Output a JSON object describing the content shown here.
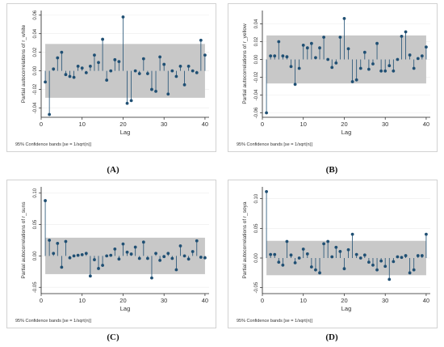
{
  "colors": {
    "band": "#c8c8c8",
    "stem": "#1f4f73",
    "marker": "#1f4f73",
    "axis": "#222222",
    "text": "#333333"
  },
  "labels": {
    "A": "(A)",
    "B": "(B)",
    "C": "(C)",
    "D": "(D)"
  },
  "chart_data": [
    {
      "type": "scatter",
      "style": "stem plot with markers, shaded 95% confidence band",
      "xlabel": "Lag",
      "ylabel": "Partial autocorrelations of r_white",
      "note": "95% Confidence bands [se = 1/sqrt(n)]",
      "xlim": [
        0,
        41
      ],
      "ylim": [
        -0.05,
        0.065
      ],
      "xticks": [
        0,
        10,
        20,
        30,
        40
      ],
      "yticks": [
        -0.04,
        -0.02,
        0.0,
        0.02,
        0.04,
        0.06
      ],
      "ytick_labels": [
        "-0.04",
        "-0.02",
        "0.00",
        "0.02",
        "0.04",
        "0.06"
      ],
      "band": [
        -0.029,
        0.029
      ],
      "grid": true,
      "x": [
        1,
        2,
        3,
        4,
        5,
        6,
        7,
        8,
        9,
        10,
        11,
        12,
        13,
        14,
        15,
        16,
        17,
        18,
        19,
        20,
        21,
        22,
        23,
        24,
        25,
        26,
        27,
        28,
        29,
        30,
        31,
        32,
        33,
        34,
        35,
        36,
        37,
        38,
        39,
        40
      ],
      "values": [
        -0.012,
        -0.047,
        0.002,
        0.014,
        0.02,
        -0.004,
        -0.006,
        -0.007,
        0.005,
        0.003,
        -0.002,
        0.005,
        0.017,
        0.009,
        0.034,
        -0.01,
        0.0,
        0.012,
        0.01,
        0.058,
        -0.035,
        -0.032,
        0.0,
        -0.003,
        0.013,
        -0.003,
        -0.02,
        -0.022,
        0.015,
        0.007,
        -0.025,
        0.0,
        -0.006,
        0.005,
        -0.015,
        0.005,
        0.0,
        -0.002,
        0.033,
        0.017
      ]
    },
    {
      "type": "scatter",
      "style": "stem plot with markers, shaded 95% confidence band",
      "xlabel": "Lag",
      "ylabel": "Partial autocorrelations of r_yellow",
      "note": "95% Confidence bands [se = 1/sqrt(n)]",
      "xlim": [
        0,
        41
      ],
      "ylim": [
        -0.065,
        0.055
      ],
      "xticks": [
        0,
        10,
        20,
        30,
        40
      ],
      "yticks": [
        -0.06,
        -0.04,
        -0.02,
        0.0,
        0.02,
        0.04
      ],
      "ytick_labels": [
        "-0.06",
        "-0.04",
        "-0.02",
        "0.00",
        "0.02",
        "0.04"
      ],
      "band": [
        -0.027,
        0.027
      ],
      "grid": true,
      "x": [
        1,
        2,
        3,
        4,
        5,
        6,
        7,
        8,
        9,
        10,
        11,
        12,
        13,
        14,
        15,
        16,
        17,
        18,
        19,
        20,
        21,
        22,
        23,
        24,
        25,
        26,
        27,
        28,
        29,
        30,
        31,
        32,
        33,
        34,
        35,
        36,
        37,
        38,
        39,
        40
      ],
      "values": [
        -0.06,
        0.004,
        0.004,
        0.02,
        0.004,
        0.003,
        -0.008,
        -0.028,
        -0.01,
        0.016,
        0.013,
        0.018,
        0.002,
        0.013,
        0.025,
        0.0,
        -0.009,
        -0.004,
        0.025,
        0.046,
        0.012,
        -0.025,
        -0.023,
        -0.01,
        0.008,
        -0.011,
        -0.005,
        0.018,
        -0.013,
        -0.013,
        -0.007,
        -0.013,
        0.0,
        0.026,
        0.031,
        0.005,
        -0.01,
        0.001,
        0.004,
        0.014
      ]
    },
    {
      "type": "scatter",
      "style": "stem plot with markers, shaded 95% confidence band",
      "xlabel": "Lag",
      "ylabel": "Partial autocorrelations of r_suns",
      "note": "95% Confidence bands [se = 1/sqrt(n)]",
      "xlim": [
        0,
        41
      ],
      "ylim": [
        -0.06,
        0.11
      ],
      "xticks": [
        0,
        10,
        20,
        30,
        40
      ],
      "yticks": [
        -0.05,
        0.0,
        0.05,
        0.1
      ],
      "ytick_labels": [
        "-0.05",
        "0.00",
        "0.05",
        "0.10"
      ],
      "band": [
        -0.029,
        0.029
      ],
      "grid": true,
      "x": [
        1,
        2,
        3,
        4,
        5,
        6,
        7,
        8,
        9,
        10,
        11,
        12,
        13,
        14,
        15,
        16,
        17,
        18,
        19,
        20,
        21,
        22,
        23,
        24,
        25,
        26,
        27,
        28,
        29,
        30,
        31,
        32,
        33,
        34,
        35,
        36,
        37,
        38,
        39,
        40
      ],
      "values": [
        0.088,
        0.025,
        0.004,
        0.02,
        -0.018,
        0.023,
        -0.003,
        0.0,
        0.001,
        0.002,
        0.004,
        -0.032,
        -0.006,
        -0.02,
        -0.015,
        0.0,
        0.001,
        0.011,
        -0.005,
        0.019,
        0.006,
        0.003,
        0.014,
        -0.004,
        0.022,
        -0.004,
        -0.035,
        0.004,
        -0.007,
        -0.001,
        0.004,
        -0.004,
        -0.022,
        0.016,
        0.0,
        -0.005,
        0.007,
        0.024,
        -0.002,
        -0.003
      ]
    },
    {
      "type": "scatter",
      "style": "stem plot with markers, shaded 95% confidence band",
      "xlabel": "Lag",
      "ylabel": "Partial autocorrelations of r_soya",
      "note": "95% Confidence bands [se = 1/sqrt(n)]",
      "xlim": [
        0,
        41
      ],
      "ylim": [
        -0.06,
        0.12
      ],
      "xticks": [
        0,
        10,
        20,
        30,
        40
      ],
      "yticks": [
        -0.05,
        0.0,
        0.05,
        0.1
      ],
      "ytick_labels": [
        "-0.05",
        "0.00",
        "0.05",
        "0.10"
      ],
      "band": [
        -0.029,
        0.029
      ],
      "grid": true,
      "x": [
        1,
        2,
        3,
        4,
        5,
        6,
        7,
        8,
        9,
        10,
        11,
        12,
        13,
        14,
        15,
        16,
        17,
        18,
        19,
        20,
        21,
        22,
        23,
        24,
        25,
        26,
        27,
        28,
        29,
        30,
        31,
        32,
        33,
        34,
        35,
        36,
        37,
        38,
        39,
        40
      ],
      "values": [
        0.112,
        0.006,
        0.006,
        -0.007,
        -0.012,
        0.028,
        0.005,
        -0.008,
        0.0,
        0.015,
        0.007,
        -0.015,
        -0.02,
        -0.025,
        0.024,
        0.028,
        0.002,
        0.018,
        0.011,
        -0.018,
        0.014,
        0.04,
        0.006,
        0.0,
        0.005,
        -0.007,
        -0.012,
        -0.02,
        -0.005,
        -0.014,
        -0.036,
        -0.006,
        0.002,
        0.001,
        0.004,
        -0.025,
        -0.02,
        0.004,
        0.004,
        0.04
      ]
    }
  ]
}
